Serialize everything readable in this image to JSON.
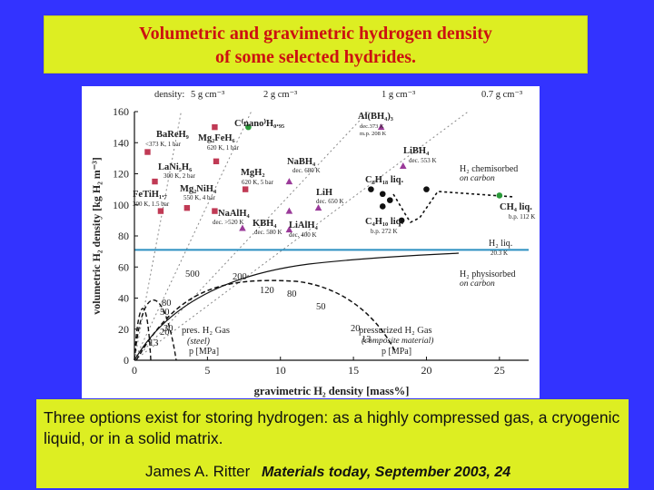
{
  "slide": {
    "title_line1": "Volumetric and gravimetric hydrogen density",
    "title_line2": "of some selected hydrides.",
    "caption": "Three options exist for storing hydrogen: as a highly compressed gas, a cryogenic liquid, or in a solid matrix.",
    "author": "James A. Ritter",
    "journal": "Materials today, September 2003, 24"
  },
  "colors": {
    "background": "#3333ff",
    "title_box": "#ddee22",
    "title_text": "#cc1111",
    "liquid_line": "#2b8fc0",
    "hydride_marker": "#c03a55",
    "green_marker": "#2a9a3a"
  },
  "figure": {
    "density_label": "density:",
    "density_marks": [
      "5 g cm⁻³",
      "2 g cm⁻³",
      "1 g cm⁻³",
      "0.7 g cm⁻³"
    ],
    "annotations": [
      "BaReH₉",
      "<373 K, 1 bar",
      "Mg₂FeH₆",
      "620 K, 1 bar",
      "LaNi₅H₆",
      "300 K, 2 bar",
      "Mg₂NiH₄",
      "550 K, 4 bar",
      "FeTiH₁.₇",
      "300 K, 1.5 bar",
      "NaAlH₄",
      "dec. >520 K",
      "MgH₂",
      "620 K, 5 bar",
      "NaBH₄",
      "dec. 680 K",
      "KBH₄",
      "dec. 580 K",
      "LiH",
      "dec. 650 K",
      "LiAlH₄",
      "dec. 400 K",
      "Al(BH₄)₃",
      "dec.373 K",
      "m.p. 208 K",
      "LiBH₄",
      "dec. 553 K",
      "C⁽nano⁾H₀.₉₅",
      "C₈H₁₈ liq.",
      "C₄H₁₀ liq.",
      "b.p. 272 K",
      "CH₄ liq.",
      "b.p. 112 K",
      "H₂ chemisorbed",
      "on carbon",
      "H₂ liq.",
      "20.3 K",
      "H₂ physisorbed",
      "on carbon",
      "pres. H₂ Gas",
      "(steel)",
      "p [MPa]",
      "pressurized H₂ Gas",
      "(composite material)",
      "p [MPa]"
    ],
    "pressure_labels": [
      "500",
      "200",
      "120",
      "80",
      "50",
      "80",
      "50",
      "30",
      "20",
      "13",
      "20",
      "13"
    ]
  },
  "chart_data": {
    "type": "scatter",
    "xlabel": "gravimetric H₂ density [mass%]",
    "ylabel": "volumetric H₂ density [kg H₂ m⁻³]",
    "xlim": [
      0,
      27
    ],
    "ylim": [
      0,
      160
    ],
    "x_ticks": [
      "0",
      "5",
      "10",
      "15",
      "20",
      "25"
    ],
    "y_ticks": [
      "0",
      "20",
      "40",
      "60",
      "80",
      "100",
      "120",
      "140",
      "160"
    ],
    "grid": false,
    "series": [
      {
        "marker": "square",
        "points": [
          {
            "x": 0.9,
            "y": 134
          },
          {
            "x": 5.5,
            "y": 150
          },
          {
            "x": 1.4,
            "y": 115
          },
          {
            "x": 3.6,
            "y": 98
          },
          {
            "x": 1.8,
            "y": 96
          },
          {
            "x": 5.6,
            "y": 128
          },
          {
            "x": 7.6,
            "y": 110
          },
          {
            "x": 5.5,
            "y": 96
          }
        ]
      },
      {
        "marker": "triangle",
        "points": [
          {
            "x": 10.6,
            "y": 115
          },
          {
            "x": 7.4,
            "y": 85
          },
          {
            "x": 12.6,
            "y": 98
          },
          {
            "x": 10.6,
            "y": 96
          },
          {
            "x": 16.9,
            "y": 150
          },
          {
            "x": 18.4,
            "y": 125
          },
          {
            "x": 10.6,
            "y": 84
          }
        ]
      },
      {
        "marker": "circle",
        "points": [
          {
            "x": 7.8,
            "y": 150
          },
          {
            "x": 16.2,
            "y": 110
          },
          {
            "x": 17.0,
            "y": 107
          },
          {
            "x": 17.5,
            "y": 103
          },
          {
            "x": 17.0,
            "y": 99
          },
          {
            "x": 18.3,
            "y": 90
          },
          {
            "x": 20.0,
            "y": 110
          },
          {
            "x": 25.0,
            "y": 106
          }
        ]
      }
    ],
    "density_lines_g_cm3": [
      5,
      2,
      1,
      0.7
    ],
    "liquid_h2_y": 71
  }
}
